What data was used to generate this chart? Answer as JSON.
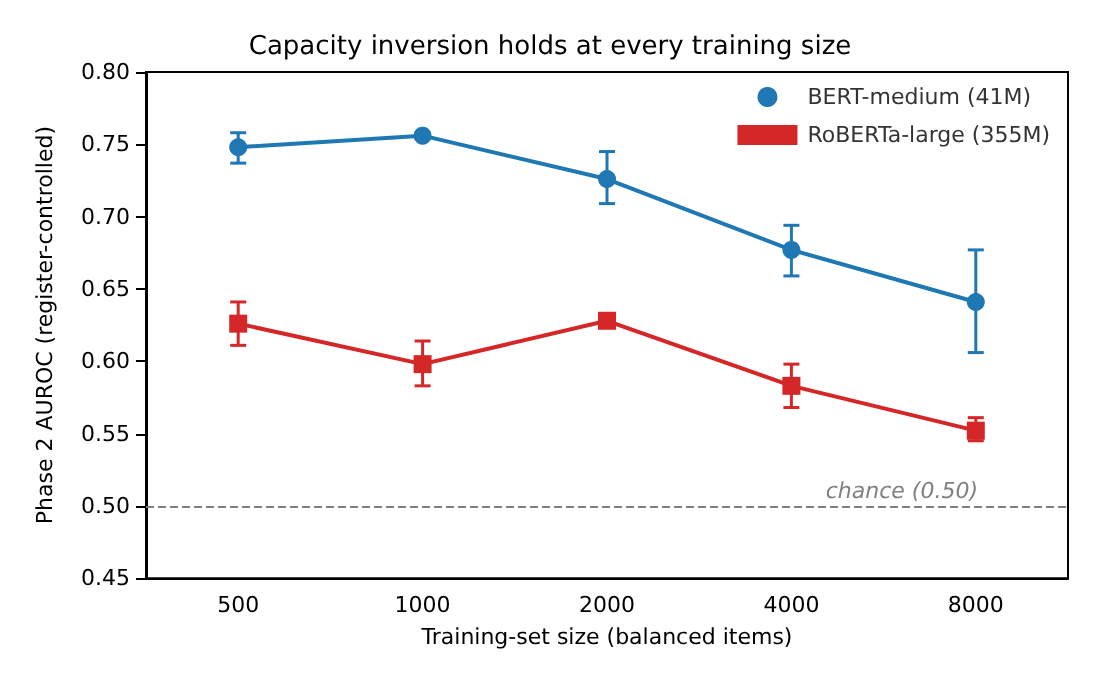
{
  "chart_data": {
    "type": "line",
    "title": "Capacity inversion holds at every training size",
    "xlabel": "Training-set size (balanced items)",
    "ylabel": "Phase 2 AUROC (register-controlled)",
    "categories": [
      "500",
      "1000",
      "2000",
      "4000",
      "8000"
    ],
    "series": [
      {
        "name": "BERT-medium (41M)",
        "color": "#1f77b4",
        "marker": "circle",
        "values": [
          0.748,
          0.756,
          0.726,
          0.677,
          0.641
        ],
        "errors": [
          [
            0.737,
            0.758
          ],
          [
            0.754,
            0.758
          ],
          [
            0.709,
            0.745
          ],
          [
            0.659,
            0.694
          ],
          [
            0.606,
            0.677
          ]
        ]
      },
      {
        "name": "RoBERTa-large (355M)",
        "color": "#d62728",
        "marker": "square",
        "values": [
          0.626,
          0.598,
          0.628,
          0.583,
          0.552
        ],
        "errors": [
          [
            0.611,
            0.641
          ],
          [
            0.583,
            0.614
          ],
          null,
          [
            0.568,
            0.598
          ],
          [
            0.545,
            0.561
          ]
        ]
      }
    ],
    "ylim": [
      0.45,
      0.8
    ],
    "yticks": [
      0.45,
      {
        "value": 0.5,
        "label": "0.50"
      },
      0.55,
      {
        "value": 0.6,
        "label": "0.60"
      },
      0.65,
      {
        "value": 0.7,
        "label": "0.70"
      },
      0.75,
      {
        "value": 0.8,
        "label": "0.80"
      }
    ],
    "ref_lines": [
      {
        "axis": "y",
        "value": 0.5,
        "label": "chance (0.50)",
        "color": "#808080",
        "line_style": "dashed"
      }
    ],
    "legend": "top right",
    "grid": false,
    "line_style": "solid"
  }
}
